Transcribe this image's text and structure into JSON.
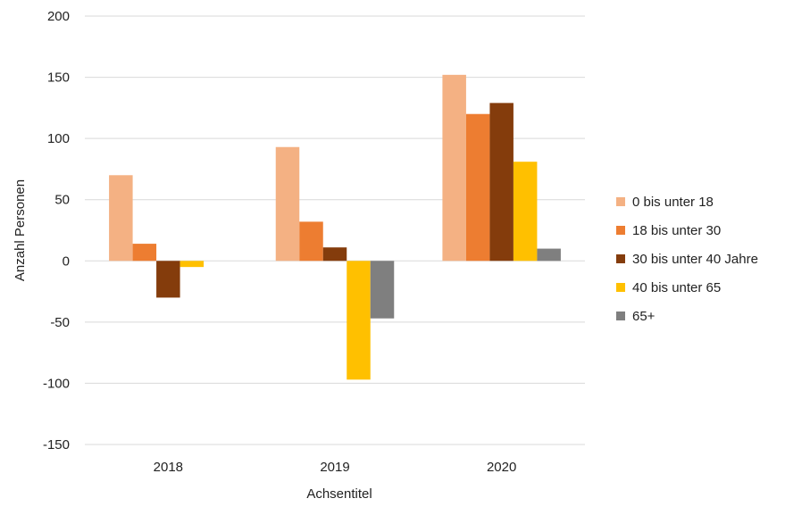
{
  "chart_data": {
    "type": "bar",
    "categories": [
      "2018",
      "2019",
      "2020"
    ],
    "series": [
      {
        "name": "0 bis unter 18",
        "color": "#F4B183",
        "values": [
          70,
          93,
          152
        ]
      },
      {
        "name": "18 bis unter 30",
        "color": "#ED7D31",
        "values": [
          14,
          32,
          120
        ]
      },
      {
        "name": "30 bis unter 40 Jahre",
        "color": "#843C0C",
        "values": [
          -30,
          11,
          129
        ]
      },
      {
        "name": "40 bis unter 65",
        "color": "#FFC000",
        "values": [
          -5,
          -97,
          81
        ]
      },
      {
        "name": "65+",
        "color": "#7F7F7F",
        "values": [
          0,
          -47,
          10
        ]
      }
    ],
    "xlabel": "Achsentitel",
    "ylabel": "Anzahl Personen",
    "ylim": [
      -150,
      200
    ],
    "yticks": [
      200,
      150,
      100,
      50,
      0,
      -50,
      -100,
      -150
    ],
    "grid": true,
    "legend_position": "right"
  }
}
